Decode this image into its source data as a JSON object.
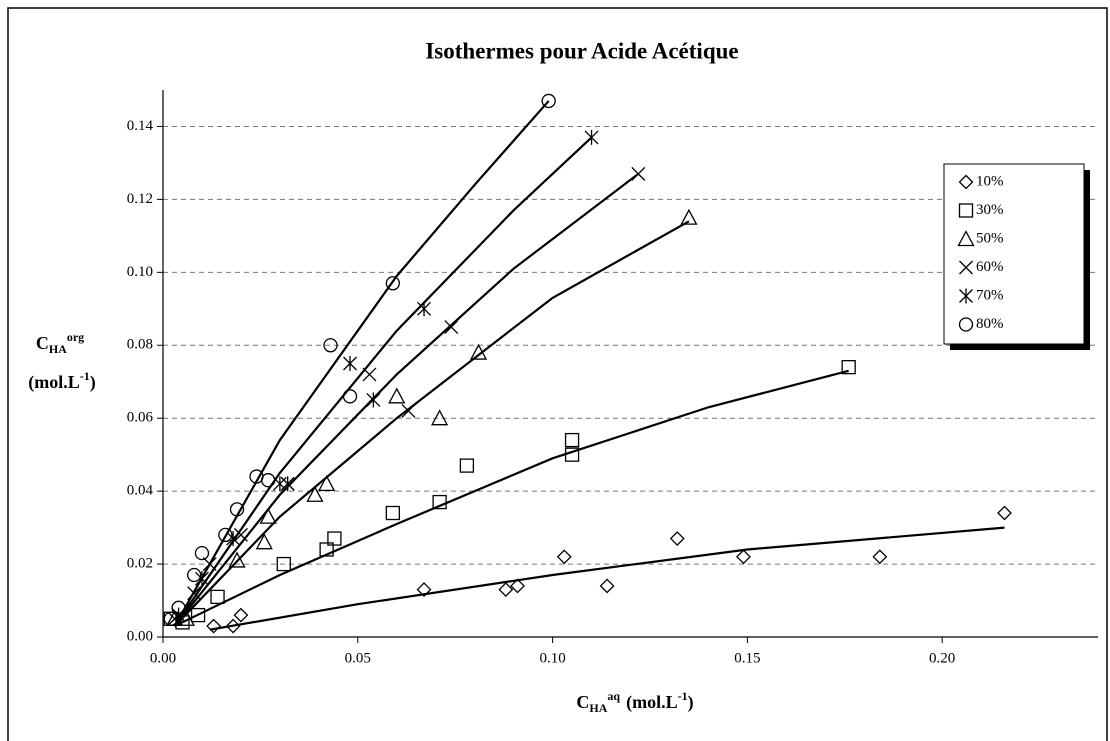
{
  "chart_data": {
    "type": "scatter",
    "title": "Isothermes pour Acide Acétique",
    "xlabel": {
      "main": "C",
      "sub": "HA",
      "sup": "aq",
      "unit": "(mol.L",
      "unit_sup": "-1",
      "unit_end": ")"
    },
    "ylabel": {
      "main": "C",
      "sub": "HA",
      "sup": "org",
      "unit": "(mol.L",
      "unit_sup": "-1",
      "unit_end": ")"
    },
    "xlim": [
      0,
      0.24
    ],
    "ylim": [
      0,
      0.15
    ],
    "xticks": [
      {
        "value": 0,
        "label": "0.00"
      },
      0.05,
      {
        "value": 0.1,
        "label": "0.10"
      },
      0.15,
      {
        "value": 0.2,
        "label": "0.20"
      }
    ],
    "yticks": [
      {
        "value": 0,
        "label": "0.00"
      },
      0.02,
      0.04,
      0.06,
      0.08,
      {
        "value": 0.1,
        "label": "0.10"
      },
      0.12,
      0.14
    ],
    "grid": true,
    "legend": "right",
    "color": "#000000",
    "series": [
      {
        "name": "10%",
        "marker": "diamond",
        "x": [
          0.013,
          0.018,
          0.02,
          0.067,
          0.088,
          0.091,
          0.103,
          0.114,
          0.132,
          0.149,
          0.184,
          0.216
        ],
        "values": [
          0.003,
          0.003,
          0.006,
          0.013,
          0.013,
          0.014,
          0.022,
          0.014,
          0.027,
          0.022,
          0.022,
          0.034
        ],
        "fit_x": [
          0.012,
          0.05,
          0.1,
          0.15,
          0.216
        ],
        "fit_y": [
          0.002,
          0.009,
          0.017,
          0.024,
          0.03
        ]
      },
      {
        "name": "30%",
        "marker": "square",
        "x": [
          0.002,
          0.005,
          0.009,
          0.014,
          0.031,
          0.042,
          0.044,
          0.059,
          0.071,
          0.078,
          0.105,
          0.105,
          0.176
        ],
        "values": [
          0.005,
          0.004,
          0.006,
          0.011,
          0.02,
          0.024,
          0.027,
          0.034,
          0.037,
          0.047,
          0.054,
          0.05,
          0.074
        ],
        "fit_x": [
          0.003,
          0.03,
          0.06,
          0.1,
          0.14,
          0.176
        ],
        "fit_y": [
          0.003,
          0.017,
          0.031,
          0.049,
          0.063,
          0.073
        ]
      },
      {
        "name": "50%",
        "marker": "triangle",
        "x": [
          0.003,
          0.006,
          0.019,
          0.026,
          0.027,
          0.039,
          0.042,
          0.06,
          0.071,
          0.081,
          0.135
        ],
        "values": [
          0.005,
          0.005,
          0.021,
          0.026,
          0.033,
          0.039,
          0.042,
          0.066,
          0.06,
          0.078,
          0.115
        ],
        "fit_x": [
          0.003,
          0.03,
          0.06,
          0.1,
          0.135
        ],
        "fit_y": [
          0.003,
          0.033,
          0.06,
          0.093,
          0.114
        ]
      },
      {
        "name": "60%",
        "marker": "x",
        "x": [
          0.003,
          0.008,
          0.012,
          0.02,
          0.032,
          0.053,
          0.063,
          0.074,
          0.122
        ],
        "values": [
          0.005,
          0.012,
          0.02,
          0.028,
          0.042,
          0.072,
          0.062,
          0.085,
          0.127
        ],
        "fit_x": [
          0.003,
          0.03,
          0.06,
          0.09,
          0.122
        ],
        "fit_y": [
          0.003,
          0.039,
          0.072,
          0.101,
          0.127
        ]
      },
      {
        "name": "70%",
        "marker": "star",
        "x": [
          0.004,
          0.01,
          0.018,
          0.03,
          0.032,
          0.048,
          0.054,
          0.067,
          0.11
        ],
        "values": [
          0.006,
          0.016,
          0.027,
          0.042,
          0.042,
          0.075,
          0.065,
          0.09,
          0.137
        ],
        "fit_x": [
          0.003,
          0.03,
          0.06,
          0.09,
          0.11
        ],
        "fit_y": [
          0.003,
          0.045,
          0.084,
          0.117,
          0.137
        ]
      },
      {
        "name": "80%",
        "marker": "circle",
        "x": [
          0.002,
          0.004,
          0.008,
          0.01,
          0.016,
          0.019,
          0.024,
          0.027,
          0.043,
          0.048,
          0.059,
          0.099
        ],
        "values": [
          0.005,
          0.008,
          0.017,
          0.023,
          0.028,
          0.035,
          0.044,
          0.043,
          0.08,
          0.066,
          0.097,
          0.147
        ],
        "fit_x": [
          0.003,
          0.03,
          0.06,
          0.08,
          0.099
        ],
        "fit_y": [
          0.003,
          0.054,
          0.099,
          0.124,
          0.147
        ]
      }
    ]
  }
}
